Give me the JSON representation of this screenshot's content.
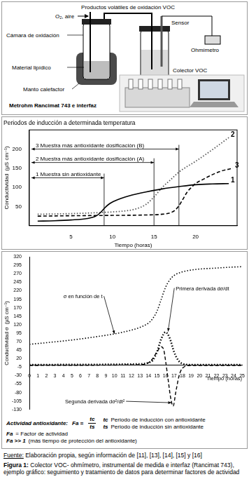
{
  "diagram": {
    "title": "Productos volátiles de oxidación VOC",
    "labels": {
      "air": "O₂, aire",
      "sensor": "Sensor",
      "chamber": "Cámara de oxidación",
      "ohmmeter": "Ohmímetro",
      "lipid": "Material lipídico",
      "collector": "Colector VOC",
      "mantle": "Manto calefactor",
      "instrument": "Metrohm Rancimat 743 e interfaz"
    }
  },
  "chart_data": [
    {
      "type": "line",
      "title": "Periodos de inducción a determinada temperatura",
      "x_label": "Tiempo (horas)",
      "y_label": "Conductividad  (µS cm⁻¹)",
      "xlim": [
        0,
        25
      ],
      "xticks": [
        5,
        10,
        15,
        20
      ],
      "ylim": [
        0,
        250
      ],
      "yticks": [
        50,
        100,
        150,
        200
      ],
      "grid": false,
      "series": [
        {
          "name": "1",
          "color": "#000000",
          "line_style": "solid",
          "x": [
            1,
            3,
            5,
            7,
            8,
            8.5,
            9,
            9.5,
            10,
            11,
            12,
            14,
            16,
            18,
            20,
            22,
            24
          ],
          "values": [
            12,
            13,
            15,
            19,
            25,
            33,
            45,
            55,
            62,
            71,
            78,
            88,
            96,
            102,
            107,
            109,
            110
          ]
        },
        {
          "name": "2",
          "color": "#555555",
          "line_style": "dotted",
          "x": [
            1,
            4,
            7,
            10,
            12,
            13,
            14,
            15,
            16,
            17,
            18,
            20,
            22,
            24
          ],
          "values": [
            30,
            31,
            33,
            36,
            40,
            45,
            55,
            75,
            100,
            120,
            140,
            168,
            198,
            230
          ]
        },
        {
          "name": "3",
          "color": "#000000",
          "line_style": "dashed",
          "x": [
            1,
            5,
            10,
            14,
            16,
            17,
            17.5,
            18,
            18.5,
            19,
            19.5,
            20,
            21,
            22,
            23,
            24.5
          ],
          "values": [
            25,
            26,
            27,
            28,
            30,
            34,
            40,
            52,
            70,
            88,
            100,
            110,
            122,
            133,
            142,
            150
          ]
        }
      ],
      "annotations": [
        {
          "text": "3 Muestra más antioxidante dosificación (B)",
          "x": 18,
          "y": 200
        },
        {
          "text": "2 Muestra más antioxidante dosificación (A)",
          "x": 15,
          "y": 165
        },
        {
          "text": "1 Muestra sin antioxidante",
          "x": 9,
          "y": 125
        }
      ]
    },
    {
      "type": "line",
      "x_label": "Tiempo (horas)",
      "y_label": "Conductividad σ  (µS cm⁻¹)",
      "xlim": [
        0,
        25
      ],
      "xticks": [
        0,
        1,
        2,
        3,
        4,
        5,
        6,
        7,
        8,
        9,
        10,
        11,
        12,
        13,
        14,
        15,
        16,
        17,
        18,
        19,
        20,
        21,
        22,
        23,
        24,
        25
      ],
      "ylim": [
        -130,
        320
      ],
      "yticks": [
        -130,
        -105,
        -80,
        -55,
        -30,
        -5,
        20,
        45,
        70,
        95,
        120,
        145,
        170,
        195,
        220,
        245,
        270,
        295,
        320
      ],
      "grid": false,
      "series": [
        {
          "color": "#000000",
          "line_style": "dotted",
          "x": [
            0,
            2,
            4,
            6,
            8,
            10,
            11,
            12,
            13,
            14,
            14.5,
            15,
            15.5,
            16,
            16.5,
            17,
            18,
            19,
            20,
            22,
            24,
            25
          ],
          "values": [
            62,
            67,
            72,
            78,
            85,
            93,
            98,
            104,
            112,
            125,
            138,
            160,
            195,
            230,
            252,
            265,
            276,
            281,
            284,
            287,
            290,
            291
          ]
        },
        {
          "color": "#000000",
          "line_style": "dotted",
          "x": [
            0,
            13,
            14,
            14.5,
            15,
            15.5,
            16,
            16.5,
            17,
            17.5,
            18,
            19,
            25
          ],
          "values": [
            2,
            4,
            8,
            15,
            40,
            78,
            98,
            80,
            40,
            15,
            5,
            2,
            2
          ]
        },
        {
          "color": "#000000",
          "line_style": "dashed",
          "x": [
            0,
            13,
            14,
            14.5,
            15,
            15.5,
            15.8,
            16,
            16.3,
            16.6,
            16.9,
            17.2,
            17.6,
            18,
            19,
            25
          ],
          "values": [
            0,
            2,
            8,
            20,
            40,
            55,
            45,
            15,
            -40,
            -95,
            -120,
            -80,
            -30,
            -8,
            0,
            0
          ]
        }
      ],
      "annotations": [
        {
          "text": "σ en función de t",
          "x": 4,
          "y": 198,
          "target": [
            10,
            93
          ]
        },
        {
          "text": "Primera derivada dσ/dt",
          "x": 17.2,
          "y": 222,
          "target": [
            16.3,
            100
          ]
        },
        {
          "text": "Segunda derivada dσ²/dt²",
          "x": 4.2,
          "y": -112,
          "target": [
            16.7,
            -110
          ]
        }
      ]
    }
  ],
  "formula": {
    "label": "Actividad antioxidante:",
    "lhs": "Fa =",
    "numerator": "tc",
    "denominator": "ts",
    "definitions": [
      {
        "symbol": "tc",
        "text": "Periodo de inducción con antioxidante"
      },
      {
        "symbol": "ts",
        "text": "Periodo de inducción sin antioxidante"
      }
    ],
    "notes": [
      {
        "symbol": "Fa",
        "text": "= Factor de actividad"
      },
      {
        "symbol": "Fa >> 1",
        "text": "(más tiempo de protección del antioxidante)"
      }
    ]
  },
  "caption": {
    "source_label": "Fuente:",
    "source": "Elaboración propia, según información de  [11], [13], [14], [15] y [16]",
    "figure_label": "Figura 1:",
    "figure": "Colector VOC- ohmímetro, instrumental de medida e interfaz (Rancimat 743), ejemplo gráfico: seguimiento y tratamiento de datos para determinar factores de actividad"
  }
}
